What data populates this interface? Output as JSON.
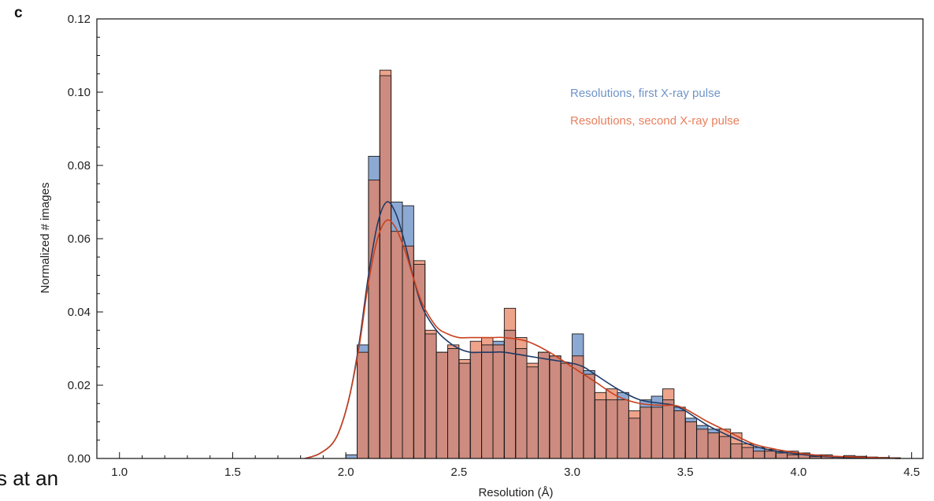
{
  "panel_label": "c",
  "cutoff_text": "s at an",
  "colors": {
    "series1": "#6f93c9",
    "series2": "#e8805e",
    "curve1": "#1f3a66",
    "curve2": "#c8401e",
    "axis": "#111111"
  },
  "chart_data": {
    "type": "bar",
    "title": "",
    "xlabel": "Resolution (Å)",
    "ylabel": "Normalized # images",
    "xlim": [
      0.9,
      4.55
    ],
    "ylim": [
      0,
      0.12
    ],
    "grid": false,
    "legend_position": "top-right",
    "bin_width": 0.05,
    "x_ticks": [
      {
        "value": 1.0,
        "label": "1.0"
      },
      {
        "value": 1.5,
        "label": "1.5"
      },
      {
        "value": 2.0,
        "label": "2.0"
      },
      {
        "value": 2.5,
        "label": "2.5"
      },
      {
        "value": 3.0,
        "label": "3.0"
      },
      {
        "value": 3.5,
        "label": "3.5"
      },
      {
        "value": 4.0,
        "label": "4.0"
      },
      {
        "value": 4.5,
        "label": "4.5"
      }
    ],
    "y_ticks": [
      {
        "value": 0.0,
        "label": "0.00"
      },
      {
        "value": 0.02,
        "label": "0.02"
      },
      {
        "value": 0.04,
        "label": "0.04"
      },
      {
        "value": 0.06,
        "label": "0.06"
      },
      {
        "value": 0.08,
        "label": "0.08"
      },
      {
        "value": 0.1,
        "label": "0.10"
      },
      {
        "value": 0.12,
        "label": "0.12"
      }
    ],
    "bin_starts": [
      2.0,
      2.05,
      2.1,
      2.15,
      2.2,
      2.25,
      2.3,
      2.35,
      2.4,
      2.45,
      2.5,
      2.55,
      2.6,
      2.65,
      2.7,
      2.75,
      2.8,
      2.85,
      2.9,
      2.95,
      3.0,
      3.05,
      3.1,
      3.15,
      3.2,
      3.25,
      3.3,
      3.35,
      3.4,
      3.45,
      3.5,
      3.55,
      3.6,
      3.65,
      3.7,
      3.75,
      3.8,
      3.85,
      3.9,
      3.95,
      4.0,
      4.05,
      4.1,
      4.15,
      4.2,
      4.25,
      4.3,
      4.35,
      4.4
    ],
    "series": [
      {
        "name": "Resolutions, first X-ray pulse",
        "values": [
          0.001,
          0.031,
          0.0825,
          0.1045,
          0.07,
          0.069,
          0.053,
          0.034,
          0.029,
          0.03,
          0.026,
          0.029,
          0.031,
          0.032,
          0.035,
          0.03,
          0.025,
          0.029,
          0.028,
          0.026,
          0.034,
          0.024,
          0.016,
          0.016,
          0.018,
          0.011,
          0.016,
          0.017,
          0.016,
          0.014,
          0.011,
          0.009,
          0.008,
          0.006,
          0.004,
          0.003,
          0.003,
          0.002,
          0.002,
          0.001,
          0.0015,
          0.001,
          0.001,
          0.0005,
          0.0005,
          0.0004,
          0.0003,
          0.0003,
          0.0002
        ]
      },
      {
        "name": "Resolutions, second X-ray pulse",
        "values": [
          0.0,
          0.029,
          0.076,
          0.106,
          0.062,
          0.058,
          0.054,
          0.035,
          0.029,
          0.031,
          0.027,
          0.032,
          0.033,
          0.031,
          0.041,
          0.033,
          0.026,
          0.029,
          0.028,
          0.026,
          0.028,
          0.023,
          0.018,
          0.019,
          0.016,
          0.013,
          0.014,
          0.014,
          0.019,
          0.013,
          0.01,
          0.008,
          0.007,
          0.008,
          0.007,
          0.004,
          0.002,
          0.0025,
          0.0015,
          0.002,
          0.0015,
          0.0005,
          0.0006,
          0.0004,
          0.0008,
          0.0006,
          0.0004,
          0.0002,
          0.0001
        ]
      }
    ],
    "curves": [
      {
        "name": "Resolutions, first X-ray pulse",
        "x": [
          1.82,
          1.88,
          1.94,
          1.98,
          2.02,
          2.06,
          2.1,
          2.14,
          2.18,
          2.22,
          2.26,
          2.3,
          2.34,
          2.4,
          2.45,
          2.5,
          2.55,
          2.6,
          2.65,
          2.7,
          2.8,
          2.9,
          3.0,
          3.05,
          3.1,
          3.2,
          3.3,
          3.4,
          3.45,
          3.5,
          3.6,
          3.7,
          3.8,
          3.9,
          4.0,
          4.1,
          4.2,
          4.3,
          4.4,
          4.45
        ],
        "y": [
          0.0,
          0.0012,
          0.004,
          0.009,
          0.018,
          0.032,
          0.05,
          0.064,
          0.07,
          0.067,
          0.059,
          0.049,
          0.041,
          0.035,
          0.032,
          0.03,
          0.029,
          0.029,
          0.029,
          0.029,
          0.028,
          0.027,
          0.026,
          0.025,
          0.023,
          0.019,
          0.016,
          0.015,
          0.0145,
          0.013,
          0.009,
          0.006,
          0.0035,
          0.002,
          0.0012,
          0.0006,
          0.0003,
          0.0002,
          0.0001,
          0.0
        ]
      },
      {
        "name": "Resolutions, second X-ray pulse",
        "x": [
          1.82,
          1.88,
          1.94,
          1.98,
          2.02,
          2.06,
          2.1,
          2.14,
          2.18,
          2.22,
          2.26,
          2.3,
          2.34,
          2.4,
          2.45,
          2.5,
          2.55,
          2.6,
          2.65,
          2.7,
          2.8,
          2.9,
          3.0,
          3.05,
          3.1,
          3.2,
          3.3,
          3.4,
          3.45,
          3.5,
          3.6,
          3.7,
          3.8,
          3.9,
          4.0,
          4.1,
          4.2,
          4.3,
          4.4,
          4.45
        ],
        "y": [
          0.0,
          0.0012,
          0.004,
          0.009,
          0.018,
          0.031,
          0.048,
          0.06,
          0.065,
          0.063,
          0.057,
          0.049,
          0.042,
          0.036,
          0.034,
          0.033,
          0.033,
          0.033,
          0.033,
          0.033,
          0.032,
          0.029,
          0.025,
          0.023,
          0.021,
          0.017,
          0.015,
          0.0145,
          0.0145,
          0.0135,
          0.01,
          0.007,
          0.004,
          0.0025,
          0.0015,
          0.0008,
          0.0005,
          0.0003,
          0.0001,
          0.0
        ]
      }
    ]
  }
}
